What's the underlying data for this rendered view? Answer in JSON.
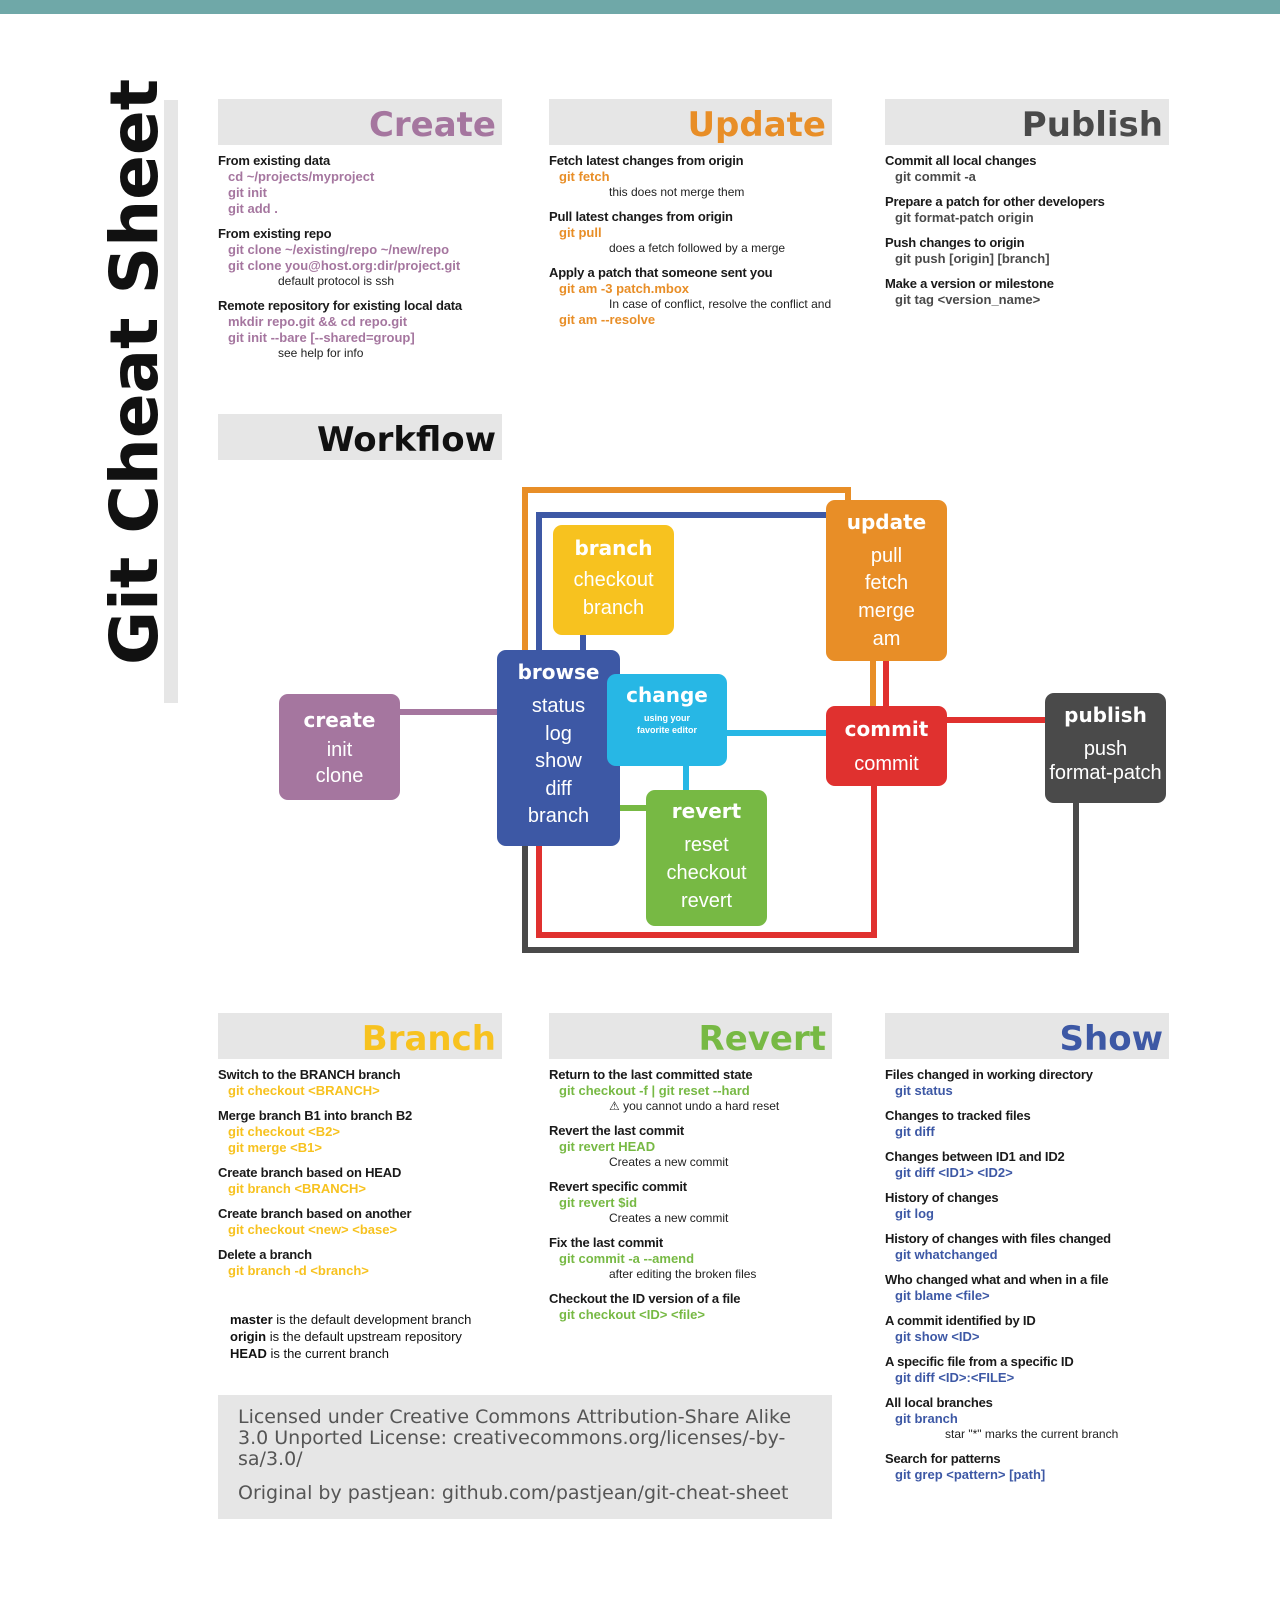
{
  "title": "Git Cheat Sheet",
  "colors": {
    "create": "#a5769f",
    "update": "#e88e27",
    "publish": "#4a4a4a",
    "branch": "#f7c21f",
    "revert": "#77b944",
    "show": "#3d58a5",
    "change": "#27b7e5",
    "commit": "#e0312f"
  },
  "sections": {
    "create": {
      "heading": "Create",
      "items": [
        {
          "desc": "From existing data",
          "cmds": [
            "cd ~/projects/myproject",
            "git init",
            "git add ."
          ]
        },
        {
          "desc": "From existing repo",
          "cmds": [
            "git clone ~/existing/repo ~/new/repo",
            "git clone you@host.org:dir/project.git"
          ],
          "note": "default protocol is ssh"
        },
        {
          "desc": "Remote repository for existing local data",
          "cmds": [
            "mkdir repo.git && cd repo.git",
            "git init --bare [--shared=group]"
          ],
          "note": "see help for info"
        }
      ]
    },
    "update": {
      "heading": "Update",
      "items": [
        {
          "desc": "Fetch latest changes from origin",
          "cmds": [
            "git fetch"
          ],
          "note": "this does not merge them"
        },
        {
          "desc": "Pull latest changes from origin",
          "cmds": [
            "git pull"
          ],
          "note": "does a fetch followed by a merge"
        },
        {
          "desc": "Apply a patch that someone sent you",
          "cmds": [
            "git am -3 patch.mbox"
          ],
          "note": "In case of conflict, resolve the conflict and",
          "cmds2": [
            "git am --resolve"
          ]
        }
      ]
    },
    "publish": {
      "heading": "Publish",
      "items": [
        {
          "desc": "Commit all local changes",
          "cmds": [
            "git commit -a"
          ]
        },
        {
          "desc": "Prepare a patch for other developers",
          "cmds": [
            "git format-patch origin"
          ]
        },
        {
          "desc": "Push changes to origin",
          "cmds": [
            "git push [origin] [branch]"
          ]
        },
        {
          "desc": "Make a version or milestone",
          "cmds": [
            "git tag <version_name>"
          ]
        }
      ]
    },
    "workflow": {
      "heading": "Workflow"
    },
    "branch": {
      "heading": "Branch",
      "items": [
        {
          "desc": "Switch to the BRANCH branch",
          "cmds": [
            "git checkout <BRANCH>"
          ]
        },
        {
          "desc": "Merge branch B1 into branch B2",
          "cmds": [
            "git checkout <B2>",
            "git merge <B1>"
          ]
        },
        {
          "desc": "Create branch based on HEAD",
          "cmds": [
            "git branch <BRANCH>"
          ]
        },
        {
          "desc": "Create branch based on another",
          "cmds": [
            "git checkout <new> <base>"
          ]
        },
        {
          "desc": "Delete a branch",
          "cmds": [
            "git branch -d <branch>"
          ]
        }
      ]
    },
    "revert": {
      "heading": "Revert",
      "items": [
        {
          "desc": "Return to the last committed state",
          "cmds": [
            "git checkout -f | git reset --hard"
          ],
          "note": "⚠ you cannot undo a hard reset"
        },
        {
          "desc": "Revert the last commit",
          "cmds": [
            "git revert HEAD"
          ],
          "note": "Creates a new commit"
        },
        {
          "desc": "Revert specific commit",
          "cmds": [
            "git revert $id"
          ],
          "note": "Creates a new commit"
        },
        {
          "desc": "Fix the last commit",
          "cmds": [
            "git commit -a --amend"
          ],
          "note": "after editing the broken files"
        },
        {
          "desc": "Checkout the ID version of a file",
          "cmds": [
            "git checkout <ID> <file>"
          ]
        }
      ]
    },
    "show": {
      "heading": "Show",
      "items": [
        {
          "desc": "Files changed in working directory",
          "cmds": [
            "git status"
          ]
        },
        {
          "desc": "Changes to tracked files",
          "cmds": [
            "git diff"
          ]
        },
        {
          "desc": "Changes between ID1 and ID2",
          "cmds": [
            "git diff <ID1> <ID2>"
          ]
        },
        {
          "desc": "History of changes",
          "cmds": [
            "git log"
          ]
        },
        {
          "desc": "History of changes with files changed",
          "cmds": [
            "git whatchanged"
          ]
        },
        {
          "desc": "Who changed what and when in a file",
          "cmds": [
            "git blame <file>"
          ]
        },
        {
          "desc": "A commit identified by ID",
          "cmds": [
            "git show <ID>"
          ]
        },
        {
          "desc": "A specific file from a specific ID",
          "cmds": [
            "git diff <ID>:<FILE>"
          ]
        },
        {
          "desc": "All local branches",
          "cmds": [
            "git branch"
          ],
          "note": "star \"*\" marks the current branch"
        },
        {
          "desc": "Search for patterns",
          "cmds": [
            "git grep <pattern> [path]"
          ]
        }
      ]
    }
  },
  "branch_notes": [
    {
      "term": "master",
      "text": " is the default development branch"
    },
    {
      "term": "origin",
      "text": " is the default upstream repository"
    },
    {
      "term": "HEAD",
      "text": " is the current branch"
    }
  ],
  "license": {
    "line1": "Licensed under Creative Commons Attribution-Share Alike 3.0 Unported License: creativecommons.org/licenses/-by-sa/3.0/",
    "line2": "Original by pastjean: github.com/pastjean/git-cheat-sheet"
  },
  "workflow_boxes": [
    {
      "id": "create",
      "title": "create",
      "lines": [
        "init",
        "clone"
      ]
    },
    {
      "id": "browse",
      "title": "browse",
      "lines": [
        "status",
        "log",
        "show",
        "diff",
        "branch"
      ]
    },
    {
      "id": "branch",
      "title": "branch",
      "lines": [
        "checkout",
        "branch"
      ]
    },
    {
      "id": "change",
      "title": "change",
      "lines": [],
      "small": [
        "using your",
        "favorite editor"
      ]
    },
    {
      "id": "revert",
      "title": "revert",
      "lines": [
        "reset",
        "checkout",
        "revert"
      ]
    },
    {
      "id": "update",
      "title": "update",
      "lines": [
        "pull",
        "fetch",
        "merge",
        "am"
      ]
    },
    {
      "id": "commit",
      "title": "commit",
      "lines": [
        "commit"
      ]
    },
    {
      "id": "publish",
      "title": "publish",
      "lines": [
        "push",
        "format-patch"
      ]
    }
  ]
}
